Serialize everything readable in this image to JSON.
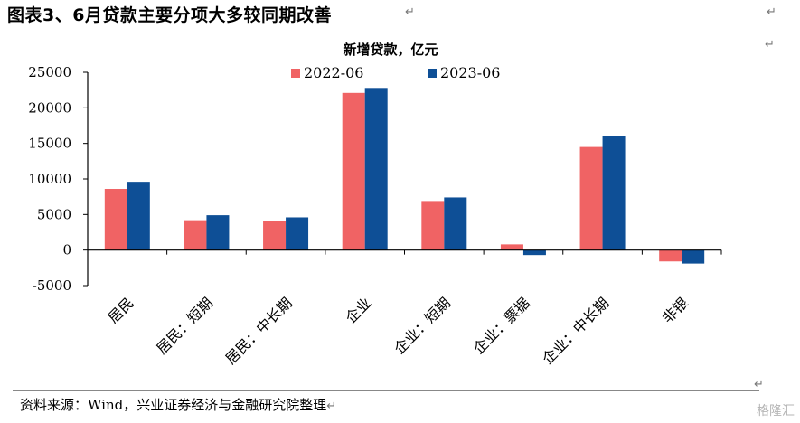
{
  "figure_title": "图表3、6月贷款主要分项大多较同期改善",
  "source_note": "资料来源：Wind，兴业证券经济与金融研究院整理",
  "return_mark": "↵",
  "watermark": "格隆汇",
  "chart_data": {
    "type": "bar",
    "title": "新增贷款，亿元",
    "categories": [
      "居民",
      "居民：短期",
      "居民：中长期",
      "企业",
      "企业：短期",
      "企业：票据",
      "企业：中长期",
      "非银"
    ],
    "series": [
      {
        "name": "2022-06",
        "color": "#f06364",
        "values": [
          8600,
          4200,
          4100,
          22100,
          6900,
          800,
          14500,
          -1600
        ]
      },
      {
        "name": "2023-06",
        "color": "#0e4f96",
        "values": [
          9600,
          4900,
          4600,
          22800,
          7400,
          -700,
          16000,
          -1900
        ]
      }
    ],
    "ylim": [
      -5000,
      25000
    ],
    "yticks": [
      -5000,
      0,
      5000,
      10000,
      15000,
      20000,
      25000
    ],
    "grid": false,
    "legend_position": "top"
  }
}
